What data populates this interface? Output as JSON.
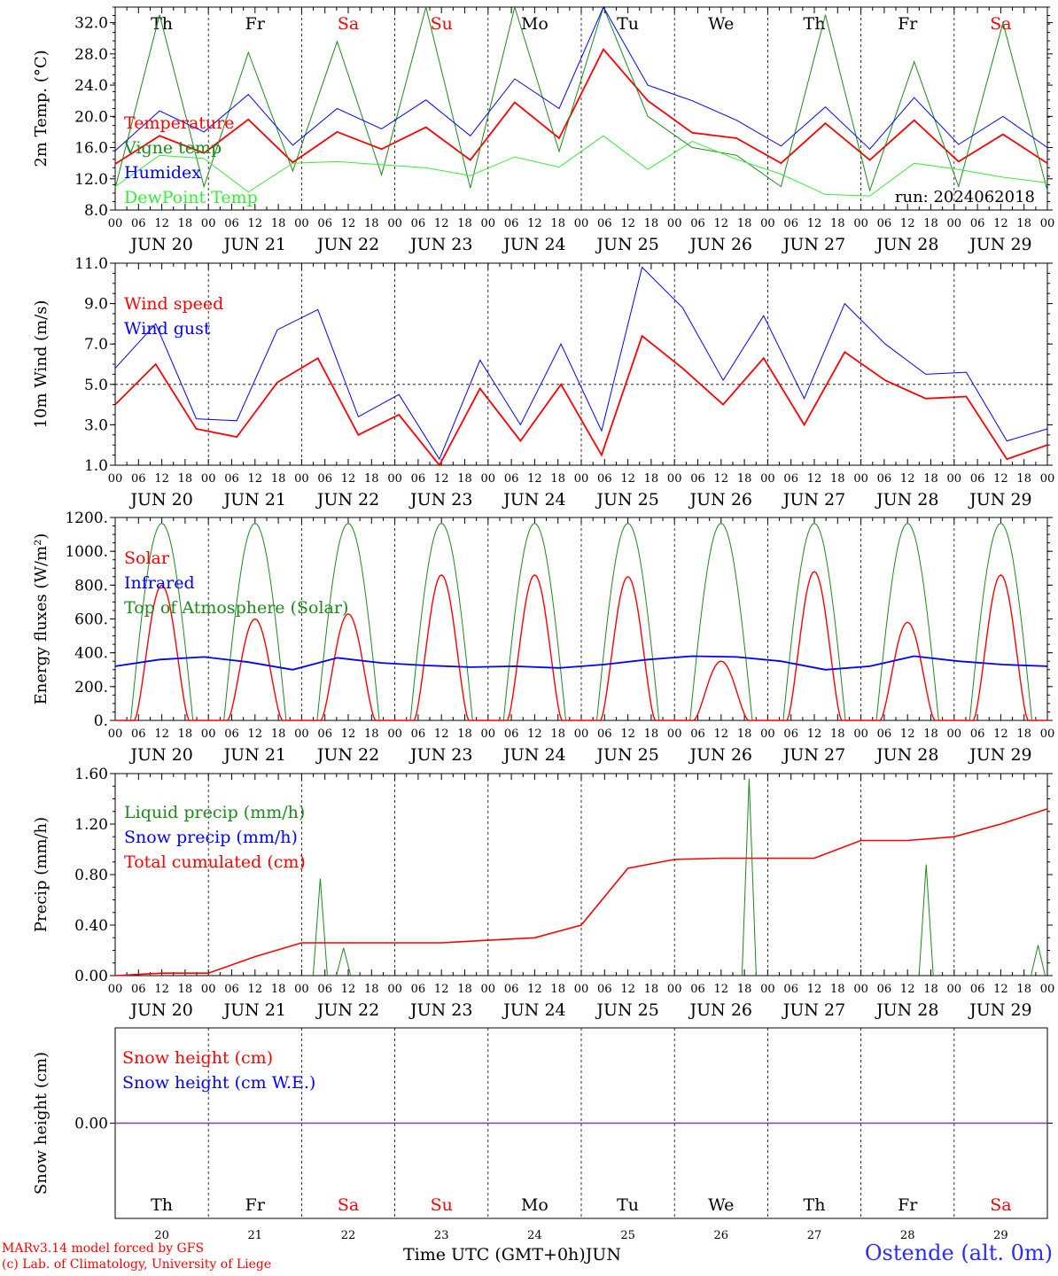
{
  "footer": {
    "credit_line1": "MARv3.14 model forced by GFS",
    "credit_line2": "(c) Lab. of Climatology, University of Liege",
    "station": "Ostende (alt. 0m)",
    "xaxis_title": "Time UTC (GMT+0h)JUN",
    "run_label": "run: 2024062018"
  },
  "days": [
    {
      "name": "Th",
      "date": "JUN 20",
      "num": "20",
      "weekend": false
    },
    {
      "name": "Fr",
      "date": "JUN 21",
      "num": "21",
      "weekend": false
    },
    {
      "name": "Sa",
      "date": "JUN 22",
      "num": "22",
      "weekend": true
    },
    {
      "name": "Su",
      "date": "JUN 23",
      "num": "23",
      "weekend": true
    },
    {
      "name": "Mo",
      "date": "JUN 24",
      "num": "24",
      "weekend": false
    },
    {
      "name": "Tu",
      "date": "JUN 25",
      "num": "25",
      "weekend": false
    },
    {
      "name": "We",
      "date": "JUN 26",
      "num": "26",
      "weekend": false
    },
    {
      "name": "Th",
      "date": "JUN 27",
      "num": "27",
      "weekend": false
    },
    {
      "name": "Fr",
      "date": "JUN 28",
      "num": "28",
      "weekend": false
    },
    {
      "name": "Sa",
      "date": "JUN 29",
      "num": "29",
      "weekend": true
    }
  ],
  "hour_ticks": [
    "00",
    "06",
    "12",
    "18"
  ],
  "colors": {
    "weekend": "#ff0000",
    "red": "#ff0000",
    "green": "#1a8a1a",
    "blue": "#0000ff",
    "lightgreen": "#33ee33",
    "purple": "#7b3fa0"
  },
  "chart_data": [
    {
      "type": "line",
      "ylabel": "2m Temp. (°C)",
      "ylim": [
        8,
        34
      ],
      "yticks": [
        "8.0",
        "12.0",
        "16.0",
        "20.0",
        "24.0",
        "28.0",
        "32.0"
      ],
      "x_hours_step": 12,
      "series": [
        {
          "name": "Temperature",
          "color": "red",
          "values": [
            13.9,
            17.5,
            15.3,
            19.6,
            14.1,
            18.0,
            15.8,
            18.6,
            14.4,
            21.8,
            17.2,
            28.6,
            22.0,
            17.9,
            17.2,
            14.0,
            19.1,
            14.4,
            19.5,
            14.2,
            17.7,
            14.0
          ]
        },
        {
          "name": "Vigne temp",
          "color": "green",
          "values": [
            10.8,
            33.0,
            11.0,
            28.2,
            13.0,
            29.6,
            12.5,
            34.0,
            10.8,
            34.5,
            15.5,
            36.0,
            20.0,
            16.0,
            15.0,
            11.0,
            33.0,
            10.5,
            27.0,
            11.0,
            32.0,
            10.5
          ]
        },
        {
          "name": "Humidex",
          "color": "blue",
          "values": [
            15.6,
            20.7,
            18.0,
            22.8,
            16.3,
            21.0,
            18.4,
            22.1,
            17.5,
            24.8,
            21.0,
            34.0,
            24.0,
            22.0,
            19.5,
            16.2,
            21.2,
            15.8,
            22.4,
            16.4,
            20.0,
            16.0
          ]
        },
        {
          "name": "DewPoint Temp",
          "color": "lightgreen",
          "values": [
            11.0,
            15.0,
            14.6,
            10.3,
            14.0,
            14.2,
            13.8,
            13.4,
            12.4,
            14.8,
            13.5,
            17.5,
            13.2,
            16.8,
            14.5,
            12.6,
            10.0,
            9.8,
            14.0,
            13.2,
            12.2,
            11.5
          ]
        }
      ]
    },
    {
      "type": "line",
      "ylabel": "10m Wind (m/s)",
      "ylim": [
        1,
        11
      ],
      "yticks": [
        "1.0",
        "3.0",
        "5.0",
        "7.0",
        "9.0",
        "11.0"
      ],
      "refline": 5,
      "x_hours_step": 12,
      "series": [
        {
          "name": "Wind speed",
          "color": "red",
          "values": [
            4.0,
            6.0,
            2.8,
            2.4,
            5.1,
            6.3,
            2.5,
            3.5,
            1.0,
            4.8,
            2.2,
            5.0,
            1.5,
            7.4,
            5.8,
            4.0,
            6.3,
            3.0,
            6.6,
            5.2,
            4.3,
            4.4,
            1.3,
            2.0
          ]
        },
        {
          "name": "Wind gust",
          "color": "blue",
          "values": [
            5.8,
            8.0,
            3.3,
            3.2,
            7.7,
            8.7,
            3.4,
            4.5,
            1.3,
            6.2,
            3.0,
            7.0,
            2.7,
            10.8,
            8.8,
            5.2,
            8.4,
            4.3,
            9.0,
            7.0,
            5.5,
            5.6,
            2.2,
            2.8
          ]
        }
      ]
    },
    {
      "type": "line",
      "ylabel": "Energy fluxes (W/m²)",
      "ylim": [
        0,
        1200
      ],
      "yticks": [
        "0.",
        "200.",
        "400.",
        "600.",
        "800.",
        "1000.",
        "1200."
      ],
      "series": [
        {
          "name": "Solar",
          "color": "red",
          "peaks": [
            800,
            600,
            630,
            860,
            860,
            850,
            350,
            880,
            580,
            860
          ]
        },
        {
          "name": "Infrared",
          "color": "blue",
          "values": [
            320,
            360,
            375,
            345,
            300,
            370,
            340,
            325,
            315,
            320,
            310,
            330,
            360,
            380,
            375,
            350,
            300,
            320,
            380,
            350,
            330,
            320
          ]
        },
        {
          "name": "Top of Atmosphere (Solar)",
          "color": "green",
          "peaks": [
            1165,
            1165,
            1165,
            1165,
            1165,
            1165,
            1165,
            1165,
            1165,
            1165
          ]
        }
      ]
    },
    {
      "type": "line",
      "ylabel": "Precip (mm/h)",
      "ylim": [
        0,
        1.6
      ],
      "yticks": [
        "0.00",
        "0.40",
        "0.80",
        "1.20",
        "1.60"
      ],
      "series": [
        {
          "name": "Liquid precip (mm/h)",
          "color": "green",
          "spikes": [
            [
              2.2,
              0.77
            ],
            [
              2.45,
              0.22
            ],
            [
              6.8,
              1.56
            ],
            [
              8.7,
              0.88
            ],
            [
              9.9,
              0.24
            ]
          ]
        },
        {
          "name": "Snow precip (mm/h)",
          "color": "blue",
          "values": []
        },
        {
          "name": "Total cumulated (cm)",
          "color": "red",
          "values": [
            0.0,
            0.02,
            0.02,
            0.15,
            0.26,
            0.26,
            0.26,
            0.26,
            0.28,
            0.3,
            0.4,
            0.85,
            0.92,
            0.93,
            0.93,
            0.93,
            1.07,
            1.07,
            1.1,
            1.2,
            1.32
          ]
        }
      ]
    },
    {
      "type": "line",
      "ylabel": "Snow height (cm)",
      "yticks": [
        "0.00"
      ],
      "series": [
        {
          "name": "Snow height (cm)",
          "color": "red",
          "values": [
            0
          ]
        },
        {
          "name": "Snow height (cm W.E.)",
          "color": "blue",
          "values": [
            0
          ]
        }
      ]
    }
  ]
}
